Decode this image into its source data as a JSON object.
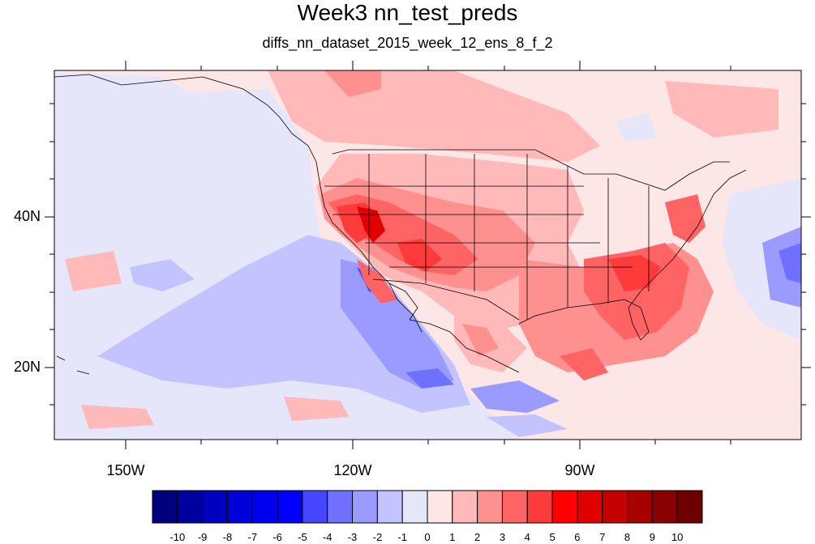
{
  "title": "Week3 nn_test_preds",
  "subtitle": "diffs_nn_dataset_2015_week_12_ens_8_f_2",
  "axes": {
    "lat_ticks": [
      "40N",
      "20N"
    ],
    "lon_ticks": [
      "150W",
      "120W",
      "90W"
    ]
  },
  "colorbar": {
    "labels": [
      "-10",
      "-9",
      "-8",
      "-7",
      "-6",
      "-5",
      "-4",
      "-3",
      "-2",
      "-1",
      "0",
      "1",
      "2",
      "3",
      "4",
      "5",
      "6",
      "7",
      "8",
      "9",
      "10"
    ],
    "colors": [
      "#00007f",
      "#00009f",
      "#0000bf",
      "#0000d8",
      "#0000ee",
      "#0000ff",
      "#4646ff",
      "#7070ff",
      "#9a9aff",
      "#c3c3ff",
      "#e6e6fb",
      "#fde6e6",
      "#ffb9b9",
      "#ff9090",
      "#ff6464",
      "#ff3a3a",
      "#ff0000",
      "#e00000",
      "#c40000",
      "#a60000",
      "#8a0000",
      "#6d0000"
    ]
  },
  "chart_data": {
    "type": "heatmap",
    "title": "Week3 nn_test_preds",
    "subtitle": "diffs_nn_dataset_2015_week_12_ens_8_f_2",
    "lon_range": [
      "160W",
      "60W"
    ],
    "lat_range": [
      "10N",
      "59N"
    ],
    "value_range": [
      -10,
      10
    ],
    "levels": [
      -10,
      -9,
      -8,
      -7,
      -6,
      -5,
      -4,
      -3,
      -2,
      -1,
      0,
      1,
      2,
      3,
      4,
      5,
      6,
      7,
      8,
      9,
      10
    ]
  }
}
